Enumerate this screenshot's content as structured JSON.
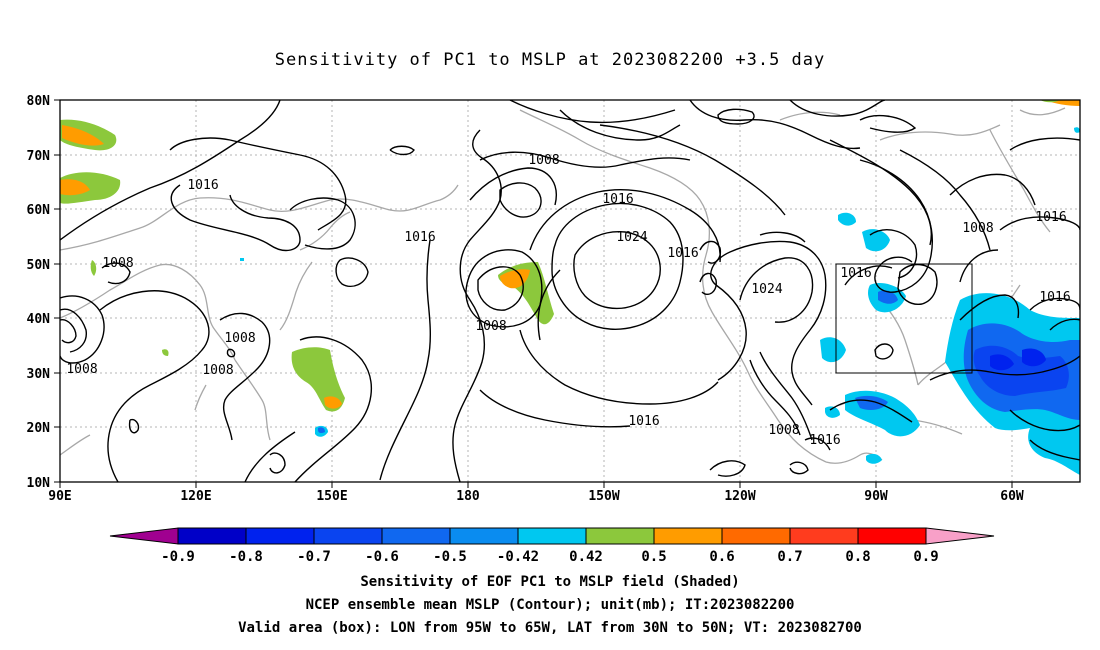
{
  "title": "Sensitivity of PC1 to MSLP at 2023082200 +3.5 day",
  "map": {
    "lat_ticks": [
      "80N",
      "70N",
      "60N",
      "50N",
      "40N",
      "30N",
      "20N",
      "10N"
    ],
    "lon_ticks": [
      "90E",
      "120E",
      "150E",
      "180",
      "150W",
      "120W",
      "90W",
      "60W"
    ],
    "contour_labels": [
      "1016",
      "1008",
      "1008",
      "1008",
      "1008",
      "1008",
      "1016",
      "1008",
      "1016",
      "1024",
      "1016",
      "1024",
      "1016",
      "1008",
      "1008",
      "1016",
      "1016",
      "1016",
      "1016"
    ]
  },
  "colorbar": {
    "labels": [
      "-0.9",
      "-0.8",
      "-0.7",
      "-0.6",
      "-0.5",
      "-0.42",
      "0.42",
      "0.5",
      "0.6",
      "0.7",
      "0.8",
      "0.9"
    ],
    "colors": [
      "#a00090",
      "#0000c8",
      "#0022ee",
      "#0a44f0",
      "#1068f0",
      "#0a8cf0",
      "#00c8f0",
      "#ffffff",
      "#8cc83c",
      "#ff9c00",
      "#ff6a00",
      "#ff3c1e",
      "#ff0000",
      "#f8a0c8"
    ]
  },
  "valid_area": {
    "lon": [
      "95W",
      "65W"
    ],
    "lat": [
      "30N",
      "50N"
    ]
  },
  "captions": {
    "line1": "Sensitivity of EOF PC1 to MSLP field (Shaded)",
    "line2": "NCEP ensemble mean MSLP (Contour); unit(mb); IT:2023082200",
    "line3": "Valid area (box): LON from 95W to 65W, LAT from 30N to 50N; VT: 2023082700"
  }
}
